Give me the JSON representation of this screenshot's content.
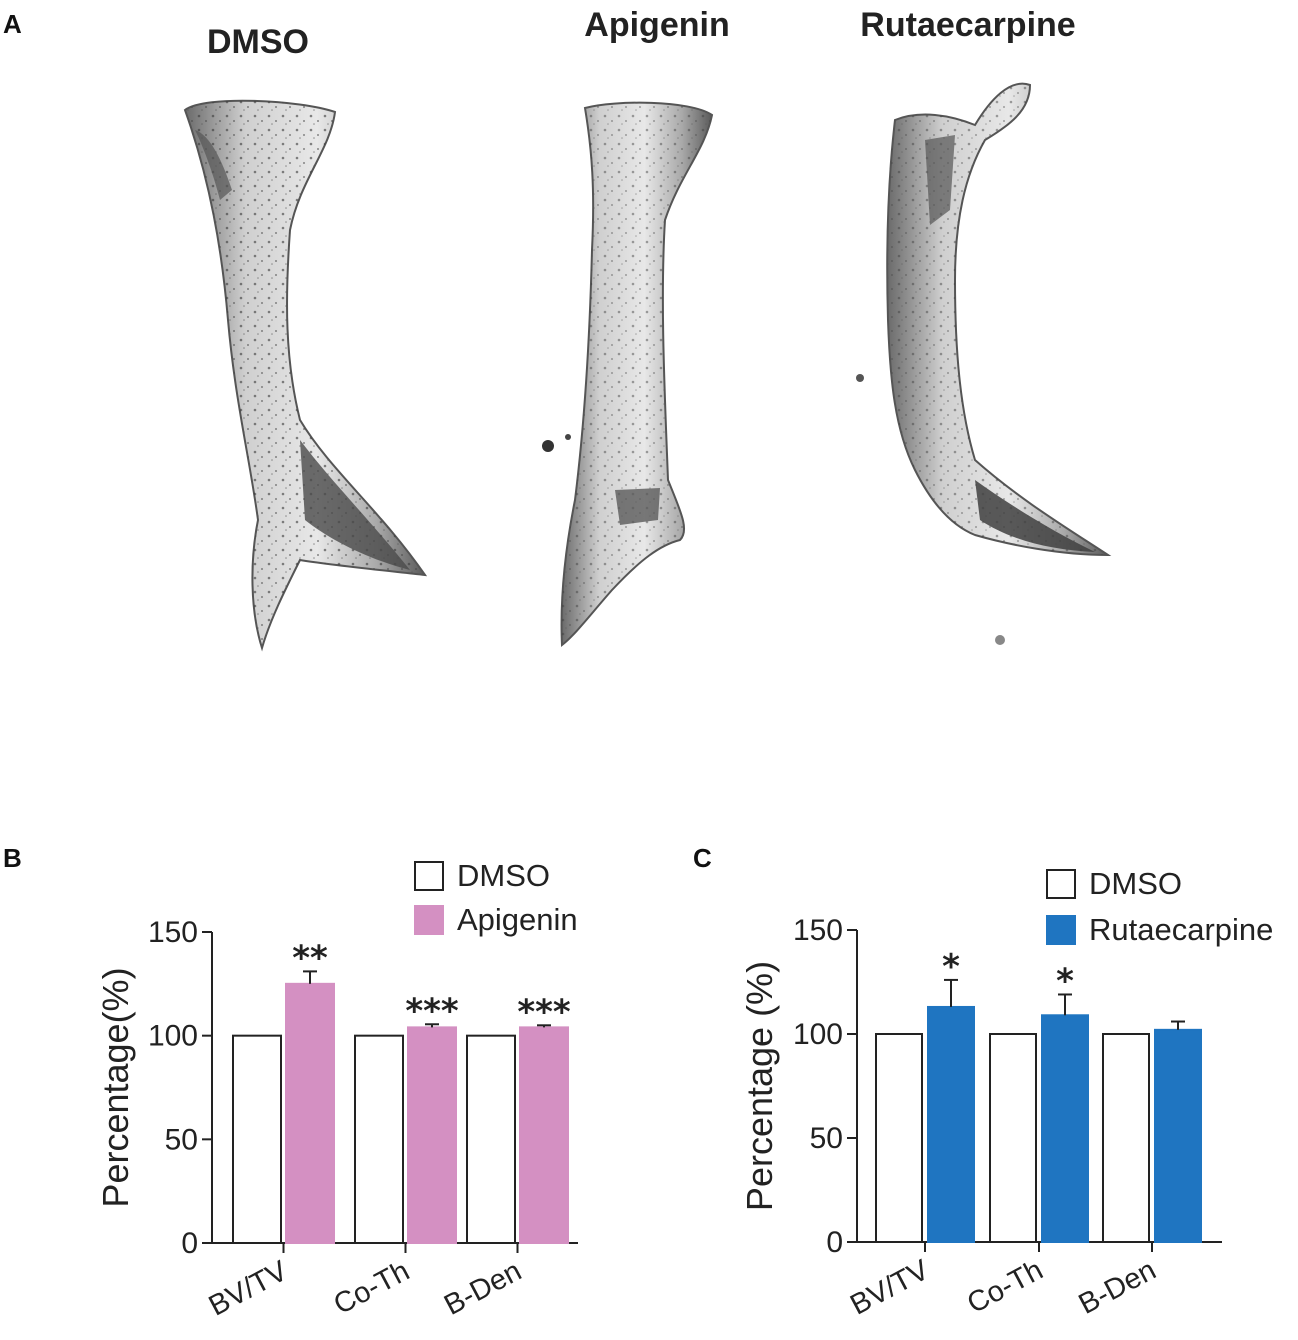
{
  "panel_a": {
    "letter": "A",
    "specimens": [
      {
        "title": "DMSO",
        "icon": "bone-microct-icon"
      },
      {
        "title": "Apigenin",
        "icon": "bone-microct-icon"
      },
      {
        "title": "Rutaecarpine",
        "icon": "bone-microct-icon"
      }
    ]
  },
  "chart_data": [
    {
      "panel": "B",
      "type": "bar",
      "categories": [
        "BV/TV",
        "Co-Th",
        "B-Den"
      ],
      "series": [
        {
          "name": "DMSO",
          "values": [
            100,
            100,
            100
          ],
          "errors": [
            0,
            0,
            0
          ],
          "color": "#ffffff"
        },
        {
          "name": "Apigenin",
          "values": [
            125,
            104,
            104
          ],
          "errors": [
            6,
            1.5,
            1
          ],
          "color": "#d490c2"
        }
      ],
      "significance": [
        "**",
        "***",
        "***"
      ],
      "ylabel": "Percentage(%)",
      "ylim": [
        0,
        150
      ],
      "yticks": [
        0,
        50,
        100,
        150
      ],
      "legend": "top-right",
      "grid": false
    },
    {
      "panel": "C",
      "type": "bar",
      "categories": [
        "BV/TV",
        "Co-Th",
        "B-Den"
      ],
      "series": [
        {
          "name": "DMSO",
          "values": [
            100,
            100,
            100
          ],
          "errors": [
            0,
            0,
            0
          ],
          "color": "#ffffff"
        },
        {
          "name": "Rutaecarpine",
          "values": [
            113,
            109,
            102
          ],
          "errors": [
            13,
            10,
            4
          ],
          "color": "#1f75c1"
        }
      ],
      "significance": [
        "*",
        "*",
        ""
      ],
      "ylabel": "Percentage (%)",
      "ylim": [
        0,
        150
      ],
      "yticks": [
        0,
        50,
        100,
        150
      ],
      "legend": "top-right",
      "grid": false
    }
  ]
}
